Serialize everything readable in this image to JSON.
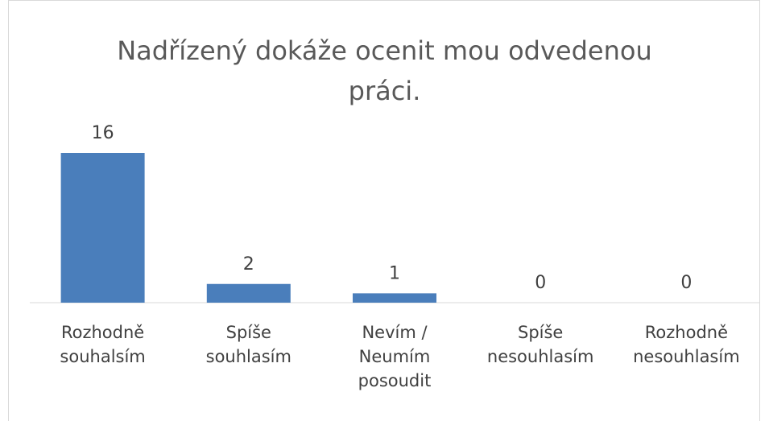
{
  "chart_data": {
    "type": "bar",
    "title": "Nadřízený dokáže ocenit mou odvedenou práci.",
    "categories": [
      "Rozhodně souhalsím",
      "Spíše souhlasím",
      "Nevím / Neumím posoudit",
      "Spíše nesouhlasím",
      "Rozhodně nesouhlasím"
    ],
    "values": [
      16,
      2,
      1,
      0,
      0
    ],
    "color": "#4a7ebb"
  }
}
